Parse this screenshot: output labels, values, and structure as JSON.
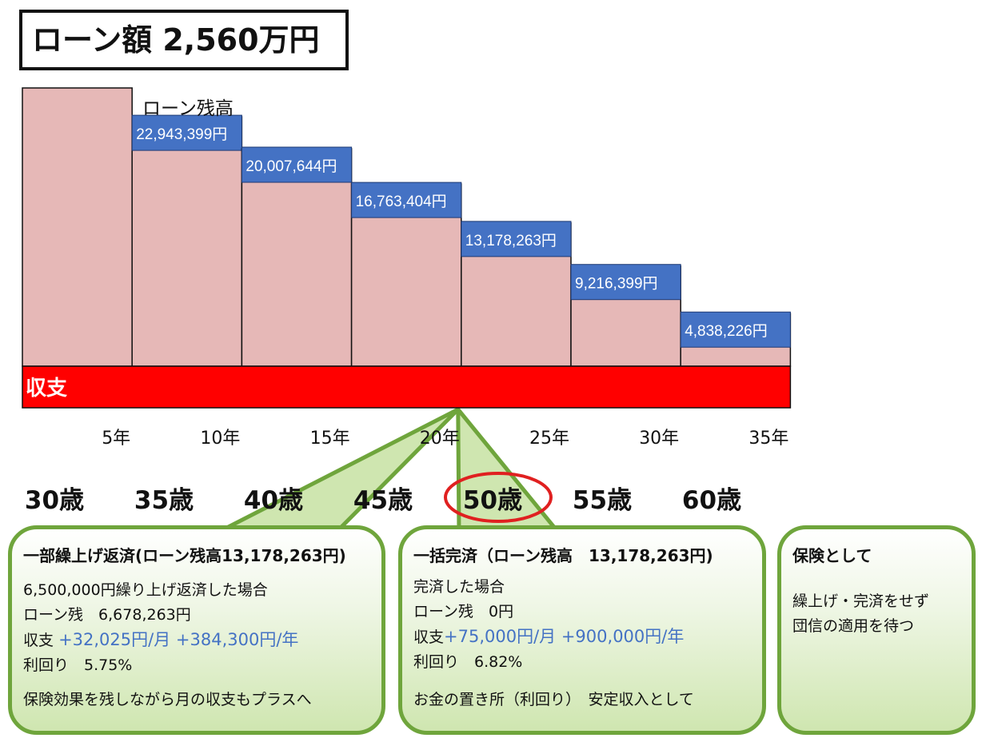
{
  "title": "ローン額 2,560万円",
  "chart_data": {
    "type": "bar",
    "series_label": "ローン残高",
    "bottom_band_label": "収支",
    "categories": [
      "5年",
      "10年",
      "15年",
      "20年",
      "25年",
      "30年",
      "35年"
    ],
    "values": [
      25600000,
      22943399,
      20007644,
      16763404,
      13178263,
      9216399,
      4838226
    ],
    "value_labels": [
      "",
      "22,943,399円",
      "20,007,644円",
      "16,763,404円",
      "13,178,263円",
      "9,216,399円",
      "4,838,226円"
    ],
    "ages": [
      "30歳",
      "35歳",
      "40歳",
      "45歳",
      "50歳",
      "55歳",
      "60歳"
    ],
    "highlighted_age": "50歳",
    "colors": {
      "bar": "#e6b8b7",
      "label_box": "#4472c4",
      "band": "#ff0000",
      "callout": "#6fa53c",
      "highlight": "#e02020"
    }
  },
  "boxes": {
    "partial": {
      "heading": "一部繰上げ返済(ローン残高13,178,263円)",
      "line1": "6,500,000円繰り上げ返済した場合",
      "line2": "ローン残　6,678,263円",
      "line3_label": "収支",
      "line3_value": "+32,025円/月 +384,300円/年",
      "line4": "利回り　5.75%",
      "footer": "保険効果を残しながら月の収支もプラスへ"
    },
    "full": {
      "heading": "一括完済（ローン残高　13,178,263円)",
      "line1": "完済した場合",
      "line2": "ローン残　0円",
      "line3_label": "収支",
      "line3_value": "+75,000円/月 +900,000円/年",
      "line4": "利回り　6.82%",
      "footer": "お金の置き所（利回り）　安定収入として"
    },
    "insurance": {
      "heading": "保険として",
      "line1": "繰上げ・完済をせず",
      "line2": "団信の適用を待つ"
    }
  }
}
